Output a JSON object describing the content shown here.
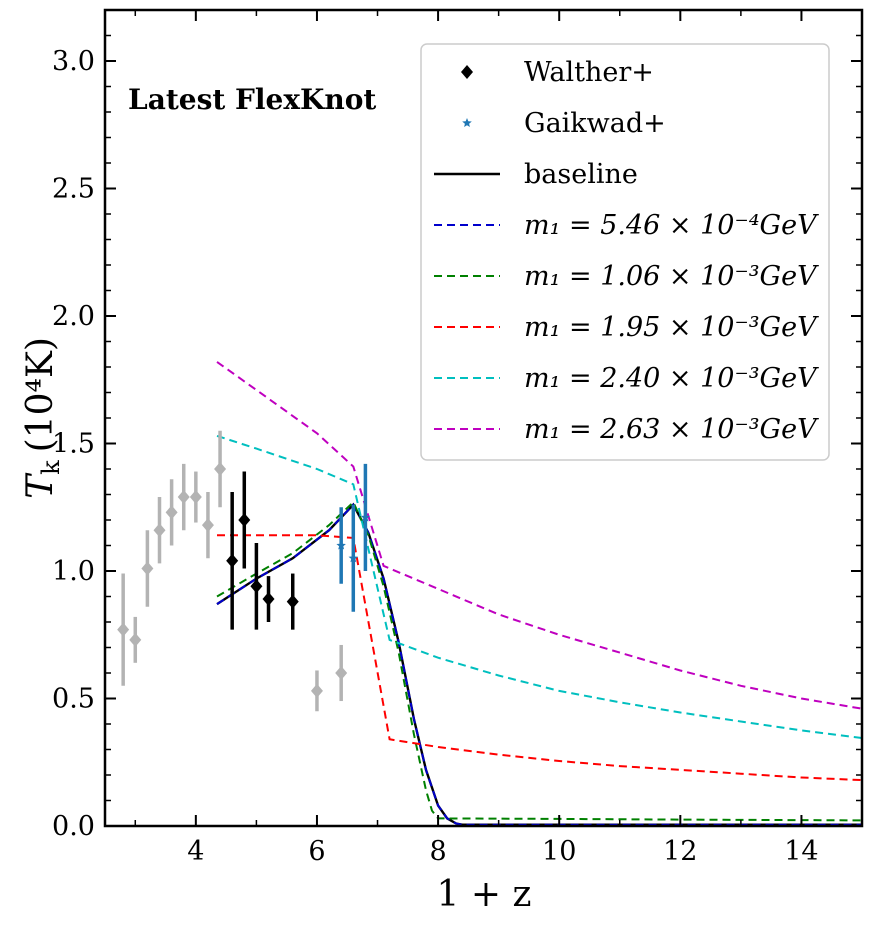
{
  "chart_data": {
    "type": "line",
    "title": "",
    "annotation": "Latest FlexKnot",
    "xlabel": "1 + z",
    "ylabel_main": "T",
    "ylabel_sub": "k",
    "ylabel_unit": "(10⁴K)",
    "xlim": [
      2.5,
      15
    ],
    "ylim": [
      0,
      3.2
    ],
    "x_ticks": [
      4,
      6,
      8,
      10,
      12,
      14
    ],
    "y_ticks": [
      0.0,
      0.5,
      1.0,
      1.5,
      2.0,
      2.5,
      3.0
    ],
    "x_tick_labels": [
      "4",
      "6",
      "8",
      "10",
      "12",
      "14"
    ],
    "y_tick_labels": [
      "0.0",
      "0.5",
      "1.0",
      "1.5",
      "2.0",
      "2.5",
      "3.0"
    ],
    "legend_position": "top-right",
    "legend": [
      {
        "label": "Walther+",
        "marker": "diamond",
        "color": "#000000"
      },
      {
        "label": "Gaikwad+",
        "marker": "star",
        "color": "#1f77b4"
      },
      {
        "label": "baseline",
        "line": "solid",
        "color": "#000000"
      },
      {
        "label": "m₁ = 5.46 × 10⁻⁴GeV",
        "line": "dashed",
        "color": "#0000cc"
      },
      {
        "label": "m₁ = 1.06 × 10⁻³GeV",
        "line": "dashed",
        "color": "#008000"
      },
      {
        "label": "m₁ = 1.95 × 10⁻³GeV",
        "line": "dashed",
        "color": "#ff0000"
      },
      {
        "label": "m₁ = 2.40 × 10⁻³GeV",
        "line": "dashed",
        "color": "#00bfbf"
      },
      {
        "label": "m₁ = 2.63 × 10⁻³GeV",
        "line": "dashed",
        "color": "#bf00bf"
      }
    ],
    "series": [
      {
        "name": "baseline",
        "color": "#000000",
        "dash": false,
        "x": [
          4.35,
          5.0,
          5.6,
          6.2,
          6.6,
          6.85,
          7.1,
          7.35,
          7.6,
          7.8,
          8.0,
          8.15,
          8.3,
          8.4,
          15.0
        ],
        "y": [
          0.87,
          0.97,
          1.05,
          1.16,
          1.26,
          1.15,
          0.97,
          0.72,
          0.42,
          0.22,
          0.08,
          0.03,
          0.01,
          0.005,
          0.005
        ]
      },
      {
        "name": "m1 = 5.46e-4 GeV",
        "color": "#0000cc",
        "dash": true,
        "x": [
          4.35,
          5.0,
          5.6,
          6.2,
          6.6,
          6.85,
          7.1,
          7.35,
          7.6,
          7.8,
          8.0,
          8.15,
          8.3,
          8.4,
          15.0
        ],
        "y": [
          0.87,
          0.97,
          1.05,
          1.16,
          1.26,
          1.15,
          0.97,
          0.72,
          0.42,
          0.22,
          0.08,
          0.03,
          0.01,
          0.005,
          0.005
        ]
      },
      {
        "name": "m1 = 1.06e-3 GeV",
        "color": "#008000",
        "dash": true,
        "x": [
          4.35,
          5.0,
          5.6,
          6.2,
          6.6,
          6.85,
          7.1,
          7.35,
          7.6,
          7.8,
          7.9,
          8.0,
          10.0,
          12.0,
          15.0
        ],
        "y": [
          0.9,
          0.99,
          1.07,
          1.18,
          1.27,
          1.14,
          0.94,
          0.68,
          0.36,
          0.14,
          0.06,
          0.03,
          0.028,
          0.025,
          0.022
        ]
      },
      {
        "name": "m1 = 1.95e-3 GeV",
        "color": "#ff0000",
        "dash": true,
        "x": [
          4.35,
          5.0,
          6.0,
          6.6,
          7.2,
          8.0,
          9.0,
          10.0,
          11.0,
          12.0,
          13.0,
          14.0,
          15.0
        ],
        "y": [
          1.14,
          1.14,
          1.14,
          1.13,
          0.34,
          0.31,
          0.28,
          0.255,
          0.235,
          0.22,
          0.205,
          0.19,
          0.18
        ]
      },
      {
        "name": "m1 = 2.40e-3 GeV",
        "color": "#00bfbf",
        "dash": true,
        "x": [
          4.35,
          5.0,
          6.0,
          6.6,
          7.2,
          8.0,
          9.0,
          10.0,
          11.0,
          12.0,
          13.0,
          14.0,
          15.0
        ],
        "y": [
          1.53,
          1.48,
          1.4,
          1.34,
          0.73,
          0.66,
          0.59,
          0.53,
          0.485,
          0.445,
          0.41,
          0.375,
          0.345
        ]
      },
      {
        "name": "m1 = 2.63e-3 GeV",
        "color": "#bf00bf",
        "dash": true,
        "x": [
          4.35,
          5.0,
          6.0,
          6.6,
          7.1,
          8.0,
          9.0,
          10.0,
          11.0,
          12.0,
          13.0,
          14.0,
          15.0
        ],
        "y": [
          1.82,
          1.71,
          1.54,
          1.41,
          1.02,
          0.93,
          0.83,
          0.75,
          0.68,
          0.61,
          0.55,
          0.5,
          0.46
        ]
      }
    ],
    "points": [
      {
        "group": "Walther+ (grey)",
        "color": "#b3b3b3",
        "marker": "diamond",
        "x": 2.8,
        "y": 0.77,
        "err": 0.22
      },
      {
        "group": "Walther+ (grey)",
        "color": "#b3b3b3",
        "marker": "diamond",
        "x": 3.0,
        "y": 0.73,
        "err": 0.09
      },
      {
        "group": "Walther+ (grey)",
        "color": "#b3b3b3",
        "marker": "diamond",
        "x": 3.2,
        "y": 1.01,
        "err": 0.15
      },
      {
        "group": "Walther+ (grey)",
        "color": "#b3b3b3",
        "marker": "diamond",
        "x": 3.4,
        "y": 1.16,
        "err": 0.13
      },
      {
        "group": "Walther+ (grey)",
        "color": "#b3b3b3",
        "marker": "diamond",
        "x": 3.6,
        "y": 1.23,
        "err": 0.13
      },
      {
        "group": "Walther+ (grey)",
        "color": "#b3b3b3",
        "marker": "diamond",
        "x": 3.8,
        "y": 1.29,
        "err": 0.13
      },
      {
        "group": "Walther+ (grey)",
        "color": "#b3b3b3",
        "marker": "diamond",
        "x": 4.0,
        "y": 1.29,
        "err": 0.1
      },
      {
        "group": "Walther+ (grey)",
        "color": "#b3b3b3",
        "marker": "diamond",
        "x": 4.2,
        "y": 1.18,
        "err": 0.13
      },
      {
        "group": "Walther+ (grey)",
        "color": "#b3b3b3",
        "marker": "diamond",
        "x": 4.4,
        "y": 1.4,
        "err": 0.15
      },
      {
        "group": "Walther+",
        "color": "#000000",
        "marker": "diamond",
        "x": 4.6,
        "y": 1.04,
        "err": 0.27
      },
      {
        "group": "Walther+",
        "color": "#000000",
        "marker": "diamond",
        "x": 4.8,
        "y": 1.2,
        "err": 0.19
      },
      {
        "group": "Walther+",
        "color": "#000000",
        "marker": "diamond",
        "x": 5.0,
        "y": 0.94,
        "err": 0.17
      },
      {
        "group": "Walther+",
        "color": "#000000",
        "marker": "diamond",
        "x": 5.2,
        "y": 0.89,
        "err": 0.09
      },
      {
        "group": "Walther+",
        "color": "#000000",
        "marker": "diamond",
        "x": 5.6,
        "y": 0.88,
        "err": 0.11
      },
      {
        "group": "grey",
        "color": "#b3b3b3",
        "marker": "diamond",
        "x": 6.0,
        "y": 0.53,
        "err": 0.08
      },
      {
        "group": "grey",
        "color": "#b3b3b3",
        "marker": "diamond",
        "x": 6.4,
        "y": 0.6,
        "err": 0.11
      },
      {
        "group": "Gaikwad+",
        "color": "#1f77b4",
        "marker": "star",
        "x": 6.4,
        "y": 1.1,
        "err": 0.15
      },
      {
        "group": "Gaikwad+",
        "color": "#1f77b4",
        "marker": "star",
        "x": 6.6,
        "y": 1.05,
        "err": 0.21
      },
      {
        "group": "Gaikwad+",
        "color": "#1f77b4",
        "marker": "star",
        "x": 6.8,
        "y": 1.21,
        "err": 0.21
      }
    ]
  }
}
